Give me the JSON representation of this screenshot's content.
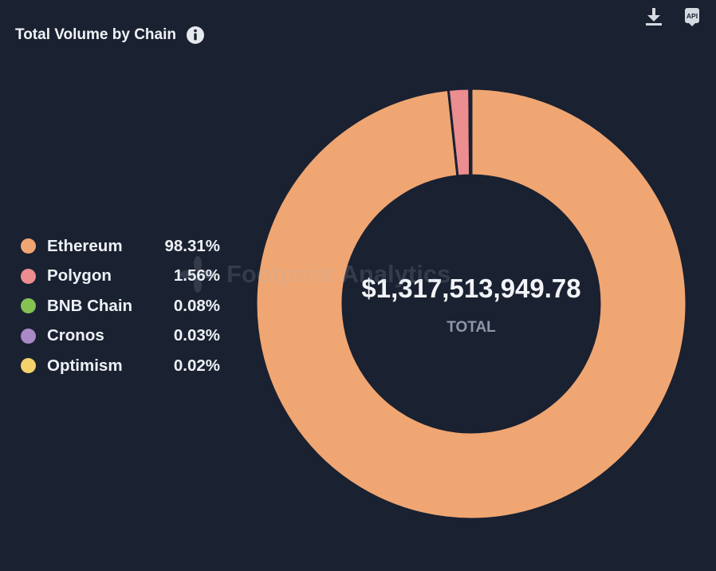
{
  "header": {
    "title": "Total Volume by Chain",
    "info_icon": "info-icon",
    "download_icon": "download-icon",
    "api_icon": "api-icon",
    "api_label": "API"
  },
  "watermark": {
    "text": "Footprint Analytics",
    "logo_icon": "footprint-logo-icon"
  },
  "chart_data": {
    "type": "pie",
    "style": "donut",
    "title": "Total Volume by Chain",
    "center_value": "$1,317,513,949.78",
    "center_label": "TOTAL",
    "legend_placement": "left",
    "slices": [
      {
        "label": "Ethereum",
        "percent": 98.31,
        "percent_label": "98.31%",
        "color": "#f0a672"
      },
      {
        "label": "Polygon",
        "percent": 1.56,
        "percent_label": "1.56%",
        "color": "#ec8d8f"
      },
      {
        "label": "BNB Chain",
        "percent": 0.08,
        "percent_label": "0.08%",
        "color": "#86c153"
      },
      {
        "label": "Cronos",
        "percent": 0.03,
        "percent_label": "0.03%",
        "color": "#a989c6"
      },
      {
        "label": "Optimism",
        "percent": 0.02,
        "percent_label": "0.02%",
        "color": "#f5d36b"
      }
    ]
  }
}
